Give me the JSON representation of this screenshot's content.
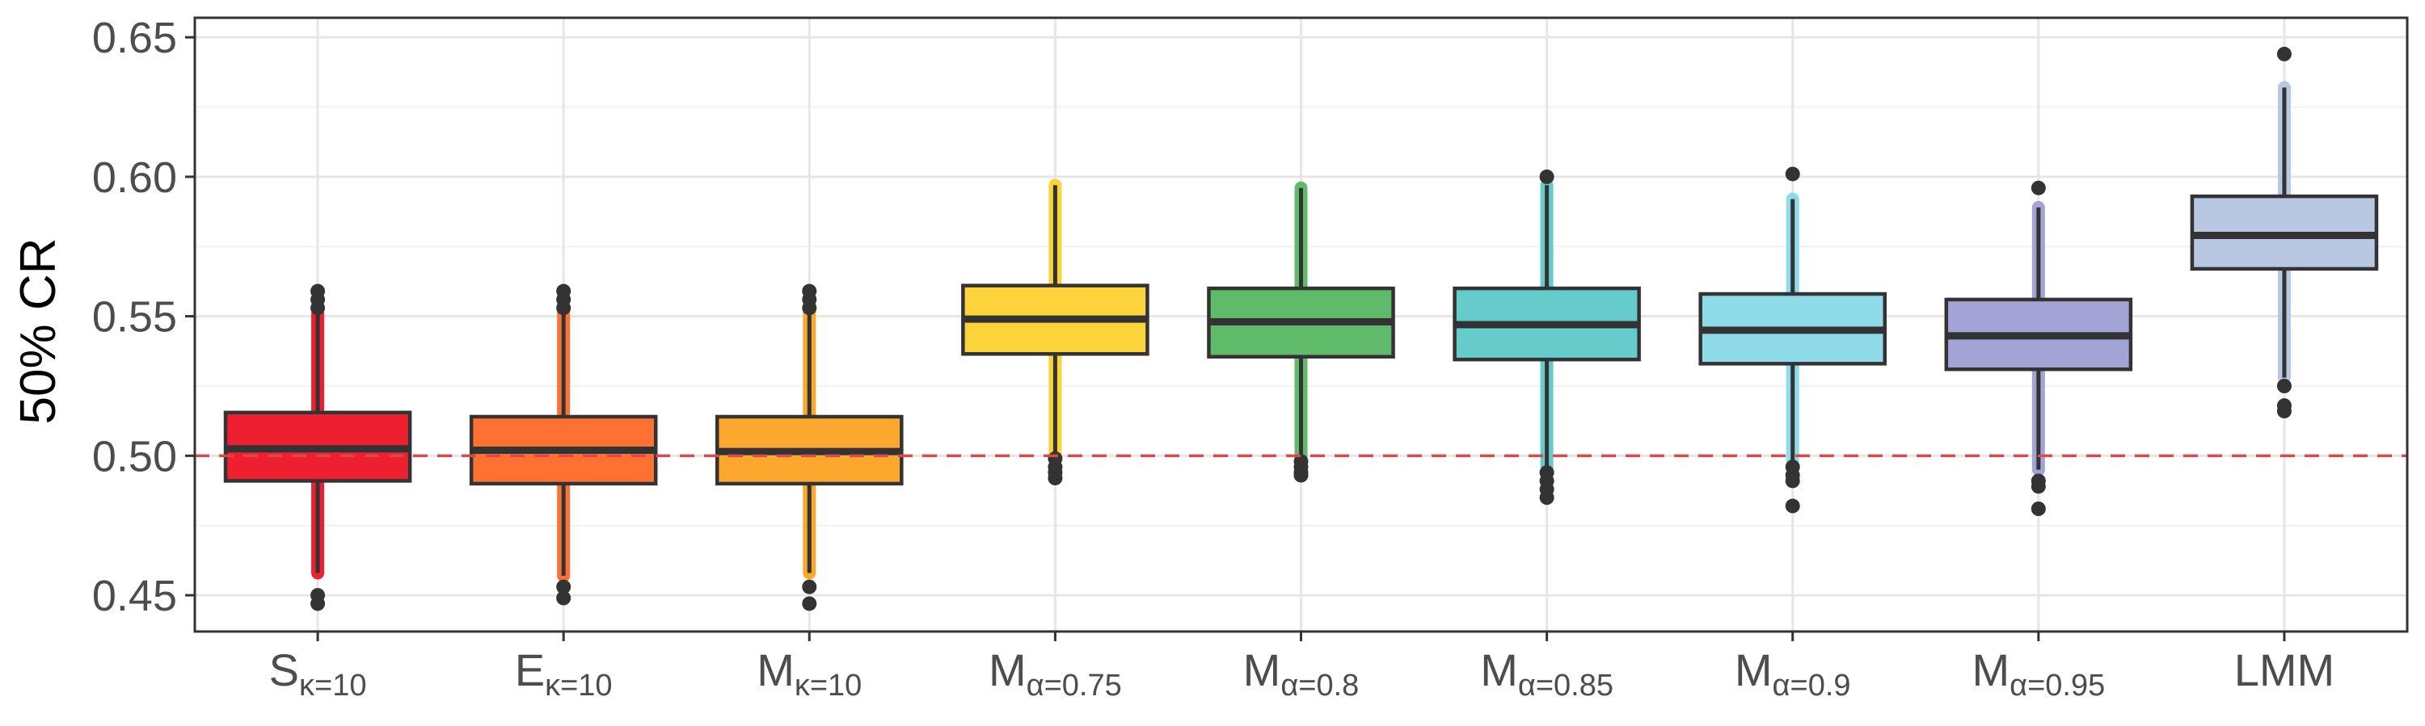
{
  "chart_data": {
    "type": "box",
    "ylabel": "50% CR",
    "xlabel": "",
    "ylim": [
      0.437,
      0.657
    ],
    "yticks": [
      0.45,
      0.5,
      0.55,
      0.6,
      0.65
    ],
    "ytick_labels": [
      "0.45",
      "0.50",
      "0.55",
      "0.60",
      "0.65"
    ],
    "grid": true,
    "reference_line": {
      "y": 0.5,
      "style": "dashed",
      "color": "#d94a4a"
    },
    "categories": [
      {
        "base": "S",
        "sub": "κ=10"
      },
      {
        "base": "E",
        "sub": "κ=10"
      },
      {
        "base": "M",
        "sub": "κ=10"
      },
      {
        "base": "M",
        "sub": "α=0.75"
      },
      {
        "base": "M",
        "sub": "α=0.8"
      },
      {
        "base": "M",
        "sub": "α=0.85"
      },
      {
        "base": "M",
        "sub": "α=0.9"
      },
      {
        "base": "M",
        "sub": "α=0.95"
      },
      {
        "base": "LMM",
        "sub": ""
      }
    ],
    "boxes": [
      {
        "q1": 0.491,
        "median": 0.5025,
        "q3": 0.5155,
        "whisker_low": 0.458,
        "whisker_high": 0.551,
        "outliers": [
          0.447,
          0.45,
          0.553,
          0.556,
          0.559
        ],
        "color": "#ee1f2e"
      },
      {
        "q1": 0.49,
        "median": 0.502,
        "q3": 0.514,
        "whisker_low": 0.457,
        "whisker_high": 0.552,
        "outliers": [
          0.449,
          0.453,
          0.553,
          0.556,
          0.559
        ],
        "color": "#fe7133"
      },
      {
        "q1": 0.49,
        "median": 0.5015,
        "q3": 0.514,
        "whisker_low": 0.458,
        "whisker_high": 0.552,
        "outliers": [
          0.447,
          0.453,
          0.553,
          0.556,
          0.559
        ],
        "color": "#fca72e"
      },
      {
        "q1": 0.5365,
        "median": 0.549,
        "q3": 0.561,
        "whisker_low": 0.5,
        "whisker_high": 0.597,
        "outliers": [
          0.492,
          0.494,
          0.496,
          0.499
        ],
        "color": "#fcd33b"
      },
      {
        "q1": 0.5355,
        "median": 0.548,
        "q3": 0.56,
        "whisker_low": 0.499,
        "whisker_high": 0.596,
        "outliers": [
          0.493,
          0.494,
          0.496,
          0.498
        ],
        "color": "#5fba6a"
      },
      {
        "q1": 0.5345,
        "median": 0.547,
        "q3": 0.56,
        "whisker_low": 0.496,
        "whisker_high": 0.597,
        "outliers": [
          0.485,
          0.488,
          0.491,
          0.494,
          0.6
        ],
        "color": "#66cbcb"
      },
      {
        "q1": 0.533,
        "median": 0.545,
        "q3": 0.558,
        "whisker_low": 0.498,
        "whisker_high": 0.592,
        "outliers": [
          0.482,
          0.491,
          0.493,
          0.496,
          0.601
        ],
        "color": "#8fdbe9"
      },
      {
        "q1": 0.531,
        "median": 0.543,
        "q3": 0.556,
        "whisker_low": 0.495,
        "whisker_high": 0.589,
        "outliers": [
          0.481,
          0.489,
          0.491,
          0.596
        ],
        "color": "#a3a3d6"
      },
      {
        "q1": 0.567,
        "median": 0.579,
        "q3": 0.593,
        "whisker_low": 0.528,
        "whisker_high": 0.632,
        "outliers": [
          0.516,
          0.518,
          0.525,
          0.644
        ],
        "color": "#b8c8e3"
      }
    ]
  }
}
